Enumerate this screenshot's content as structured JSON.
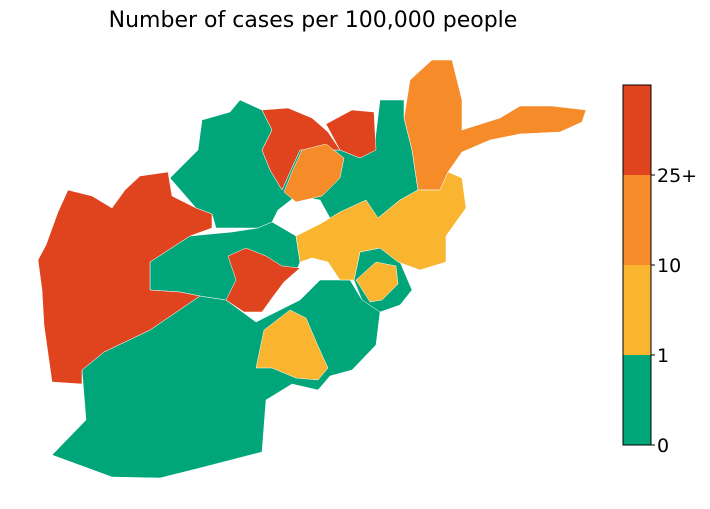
{
  "title": "Number of cases per 100,000 people",
  "legend": {
    "type": "colorbar",
    "placement": "right",
    "bins": [
      {
        "from": 0,
        "to": 1,
        "color": "#00a57a"
      },
      {
        "from": 1,
        "to": 10,
        "color": "#f9b530"
      },
      {
        "from": 10,
        "to": 25,
        "color": "#f68b2a"
      },
      {
        "from": 25,
        "to": null,
        "color": "#e0441e"
      }
    ],
    "tick_labels": [
      "0",
      "1",
      "10",
      "25+"
    ]
  },
  "colors": {
    "green": "#00a57a",
    "yellow": "#f9b530",
    "orange": "#f68b2a",
    "red": "#e0441e"
  }
}
